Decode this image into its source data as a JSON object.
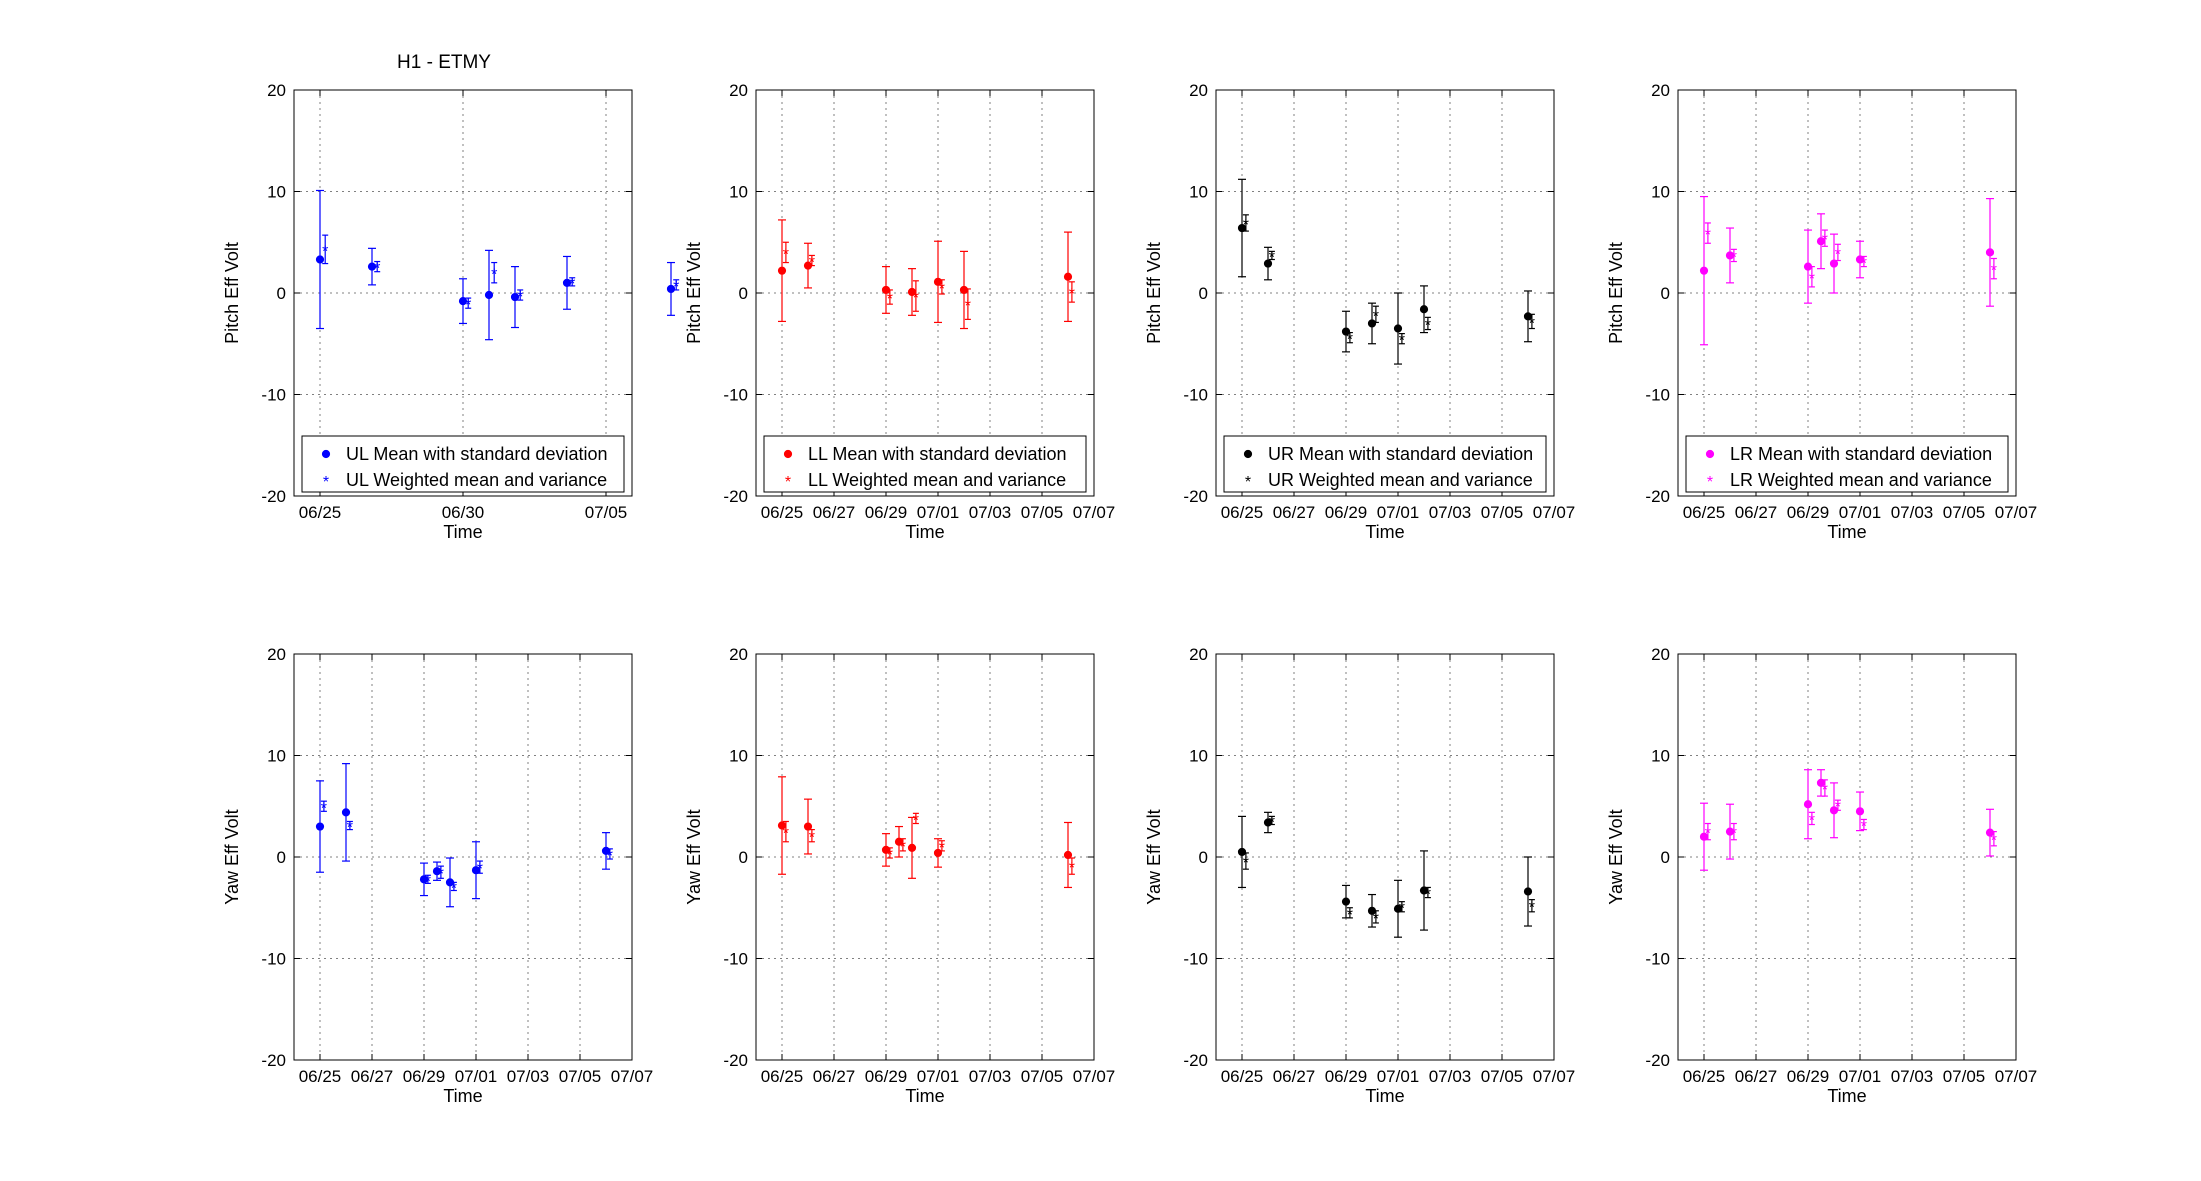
{
  "figure_title": "H1 - ETMY",
  "colors": {
    "UL": "#0000ff",
    "LL": "#ff0000",
    "UR": "#000000",
    "LR": "#ff00ff"
  },
  "chart_data": [
    {
      "type": "scatter",
      "id": "UL-pitch",
      "channel": "UL",
      "xlabel": "Time",
      "ylabel": "Pitch Eff Volt",
      "ylim": [
        -20,
        20
      ],
      "yticks": [
        "20",
        "10",
        "0",
        "-10",
        "-20"
      ],
      "xticks": [
        "06/25",
        "06/30",
        "07/05"
      ],
      "grid": true,
      "legend_position": "bottom",
      "series": [
        {
          "name": "UL Mean with standard deviation",
          "marker": "dot",
          "x": [
            1.0,
            3.0,
            6.5,
            7.5,
            8.5,
            10.5,
            14.5
          ],
          "y": [
            3.3,
            2.6,
            -0.8,
            -0.2,
            -0.4,
            1.0,
            0.4
          ],
          "err": [
            6.8,
            1.8,
            2.2,
            4.4,
            3.0,
            2.6,
            2.6
          ]
        },
        {
          "name": "UL Weighted mean and variance",
          "marker": "star",
          "x": [
            1.2,
            3.2,
            6.7,
            7.7,
            8.7,
            10.7,
            14.7
          ],
          "y": [
            4.3,
            2.6,
            -1.0,
            2.0,
            -0.2,
            1.1,
            0.8
          ],
          "err": [
            1.4,
            0.5,
            0.5,
            1.0,
            0.5,
            0.4,
            0.5
          ]
        }
      ]
    },
    {
      "type": "scatter",
      "id": "LL-pitch",
      "channel": "LL",
      "xlabel": "Time",
      "ylabel": "Pitch Eff Volt",
      "ylim": [
        -20,
        20
      ],
      "yticks": [
        "20",
        "10",
        "0",
        "-10",
        "-20"
      ],
      "xticks": [
        "06/25",
        "06/27",
        "06/29",
        "07/01",
        "07/03",
        "07/05",
        "07/07"
      ],
      "grid": true,
      "legend_position": "bottom",
      "series": [
        {
          "name": "LL Mean with standard deviation",
          "marker": "dot",
          "x": [
            1.0,
            2.0,
            5.0,
            6.0,
            7.0,
            8.0,
            12.0
          ],
          "y": [
            2.2,
            2.7,
            0.3,
            0.1,
            1.1,
            0.3,
            1.6
          ],
          "err": [
            5.0,
            2.2,
            2.3,
            2.3,
            4.0,
            3.8,
            4.4
          ]
        },
        {
          "name": "LL Weighted mean and variance",
          "marker": "star",
          "x": [
            1.15,
            2.15,
            5.15,
            6.15,
            7.15,
            8.15,
            12.15
          ],
          "y": [
            4.0,
            3.2,
            -0.4,
            -0.3,
            0.6,
            -1.1,
            0.1
          ],
          "err": [
            1.0,
            0.5,
            0.7,
            1.5,
            0.7,
            1.5,
            1.0
          ]
        }
      ]
    },
    {
      "type": "scatter",
      "id": "UR-pitch",
      "channel": "UR",
      "xlabel": "Time",
      "ylabel": "Pitch Eff Volt",
      "ylim": [
        -20,
        20
      ],
      "yticks": [
        "20",
        "10",
        "0",
        "-10",
        "-20"
      ],
      "xticks": [
        "06/25",
        "06/27",
        "06/29",
        "07/01",
        "07/03",
        "07/05",
        "07/07"
      ],
      "grid": true,
      "legend_position": "bottom",
      "series": [
        {
          "name": "UR Mean with standard deviation",
          "marker": "dot",
          "x": [
            1.0,
            2.0,
            5.0,
            6.0,
            7.0,
            8.0,
            12.0
          ],
          "y": [
            6.4,
            2.9,
            -3.8,
            -3.0,
            -3.5,
            -1.6,
            -2.3
          ],
          "err": [
            4.8,
            1.6,
            2.0,
            2.0,
            3.5,
            2.3,
            2.5
          ]
        },
        {
          "name": "UR Weighted mean and variance",
          "marker": "star",
          "x": [
            1.15,
            2.15,
            5.15,
            6.15,
            7.15,
            8.15,
            12.15
          ],
          "y": [
            6.9,
            3.7,
            -4.4,
            -2.1,
            -4.5,
            -3.0,
            -2.8
          ],
          "err": [
            0.8,
            0.4,
            0.5,
            0.8,
            0.5,
            0.6,
            0.7
          ]
        }
      ]
    },
    {
      "type": "scatter",
      "id": "LR-pitch",
      "channel": "LR",
      "xlabel": "Time",
      "ylabel": "Pitch Eff Volt",
      "ylim": [
        -20,
        20
      ],
      "yticks": [
        "20",
        "10",
        "0",
        "-10",
        "-20"
      ],
      "xticks": [
        "06/25",
        "06/27",
        "06/29",
        "07/01",
        "07/03",
        "07/05",
        "07/07"
      ],
      "grid": true,
      "legend_position": "bottom",
      "series": [
        {
          "name": "LR Mean with standard deviation",
          "marker": "dot",
          "x": [
            1.0,
            2.0,
            5.0,
            5.5,
            6.0,
            7.0,
            12.0
          ],
          "y": [
            2.2,
            3.7,
            2.6,
            5.1,
            2.9,
            3.3,
            4.0
          ],
          "err": [
            7.3,
            2.7,
            3.6,
            2.7,
            2.9,
            1.8,
            5.3
          ]
        },
        {
          "name": "LR Weighted mean and variance",
          "marker": "star",
          "x": [
            1.15,
            2.15,
            5.15,
            5.65,
            6.15,
            7.15,
            12.15
          ],
          "y": [
            5.9,
            3.7,
            1.6,
            5.4,
            4.0,
            3.1,
            2.4
          ],
          "err": [
            1.0,
            0.6,
            1.0,
            0.8,
            0.8,
            0.5,
            1.0
          ]
        }
      ]
    },
    {
      "type": "scatter",
      "id": "UL-yaw",
      "channel": "UL",
      "xlabel": "Time",
      "ylabel": "Yaw Eff Volt",
      "ylim": [
        -20,
        20
      ],
      "yticks": [
        "20",
        "10",
        "0",
        "-10",
        "-20"
      ],
      "xticks": [
        "06/25",
        "06/27",
        "06/29",
        "07/01",
        "07/03",
        "07/05",
        "07/07"
      ],
      "grid": true,
      "legend_position": "",
      "series": [
        {
          "name": "",
          "marker": "dot",
          "x": [
            1.0,
            2.0,
            5.0,
            5.5,
            6.0,
            7.0,
            12.0
          ],
          "y": [
            3.0,
            4.4,
            -2.2,
            -1.4,
            -2.5,
            -1.3,
            0.6
          ],
          "err": [
            4.5,
            4.8,
            1.6,
            0.9,
            2.4,
            2.8,
            1.8
          ]
        },
        {
          "name": "",
          "marker": "star",
          "x": [
            1.15,
            2.15,
            5.15,
            5.65,
            6.15,
            7.15,
            12.15
          ],
          "y": [
            5.0,
            3.1,
            -2.2,
            -1.5,
            -2.9,
            -1.0,
            0.3
          ],
          "err": [
            0.5,
            0.4,
            0.4,
            0.6,
            0.4,
            0.6,
            0.5
          ]
        }
      ]
    },
    {
      "type": "scatter",
      "id": "LL-yaw",
      "channel": "LL",
      "xlabel": "Time",
      "ylabel": "Yaw Eff Volt",
      "ylim": [
        -20,
        20
      ],
      "yticks": [
        "20",
        "10",
        "0",
        "-10",
        "-20"
      ],
      "xticks": [
        "06/25",
        "06/27",
        "06/29",
        "07/01",
        "07/03",
        "07/05",
        "07/07"
      ],
      "grid": true,
      "legend_position": "",
      "series": [
        {
          "name": "",
          "marker": "dot",
          "x": [
            1.0,
            2.0,
            5.0,
            5.5,
            6.0,
            7.0,
            12.0
          ],
          "y": [
            3.1,
            3.0,
            0.7,
            1.5,
            0.9,
            0.4,
            0.2
          ],
          "err": [
            4.8,
            2.7,
            1.6,
            1.5,
            3.0,
            1.4,
            3.2
          ]
        },
        {
          "name": "",
          "marker": "star",
          "x": [
            1.15,
            2.15,
            5.15,
            5.65,
            6.15,
            7.15,
            12.15
          ],
          "y": [
            2.5,
            2.1,
            0.4,
            1.2,
            3.8,
            1.1,
            -0.9
          ],
          "err": [
            1.0,
            0.6,
            0.5,
            0.6,
            0.5,
            0.5,
            0.8
          ]
        }
      ]
    },
    {
      "type": "scatter",
      "id": "UR-yaw",
      "channel": "UR",
      "xlabel": "Time",
      "ylabel": "Yaw Eff Volt",
      "ylim": [
        -20,
        20
      ],
      "yticks": [
        "20",
        "10",
        "0",
        "-10",
        "-20"
      ],
      "xticks": [
        "06/25",
        "06/27",
        "06/29",
        "07/01",
        "07/03",
        "07/05",
        "07/07"
      ],
      "grid": true,
      "legend_position": "",
      "series": [
        {
          "name": "",
          "marker": "dot",
          "x": [
            1.0,
            2.0,
            5.0,
            6.0,
            7.0,
            8.0,
            12.0
          ],
          "y": [
            0.5,
            3.4,
            -4.4,
            -5.3,
            -5.1,
            -3.3,
            -3.4
          ],
          "err": [
            3.5,
            1.0,
            1.6,
            1.6,
            2.8,
            3.9,
            3.4
          ]
        },
        {
          "name": "",
          "marker": "star",
          "x": [
            1.15,
            2.15,
            5.15,
            6.15,
            7.15,
            8.15,
            12.15
          ],
          "y": [
            -0.4,
            3.6,
            -5.5,
            -5.9,
            -4.9,
            -3.5,
            -4.8
          ],
          "err": [
            0.8,
            0.4,
            0.5,
            0.6,
            0.5,
            0.5,
            0.6
          ]
        }
      ]
    },
    {
      "type": "scatter",
      "id": "LR-yaw",
      "channel": "LR",
      "xlabel": "Time",
      "ylabel": "Yaw Eff Volt",
      "ylim": [
        -20,
        20
      ],
      "yticks": [
        "20",
        "10",
        "0",
        "-10",
        "-20"
      ],
      "xticks": [
        "06/25",
        "06/27",
        "06/29",
        "07/01",
        "07/03",
        "07/05",
        "07/07"
      ],
      "grid": true,
      "legend_position": "",
      "series": [
        {
          "name": "",
          "marker": "dot",
          "x": [
            1.0,
            2.0,
            5.0,
            5.5,
            6.0,
            7.0,
            12.0
          ],
          "y": [
            2.0,
            2.5,
            5.2,
            7.3,
            4.6,
            4.5,
            2.4
          ],
          "err": [
            3.3,
            2.7,
            3.4,
            1.3,
            2.7,
            1.9,
            2.3
          ]
        },
        {
          "name": "",
          "marker": "star",
          "x": [
            1.15,
            2.15,
            5.15,
            5.65,
            6.15,
            7.15,
            12.15
          ],
          "y": [
            2.5,
            2.5,
            3.8,
            6.8,
            5.1,
            3.2,
            1.8
          ],
          "err": [
            0.8,
            0.8,
            0.6,
            0.8,
            0.5,
            0.5,
            0.7
          ]
        }
      ]
    }
  ]
}
